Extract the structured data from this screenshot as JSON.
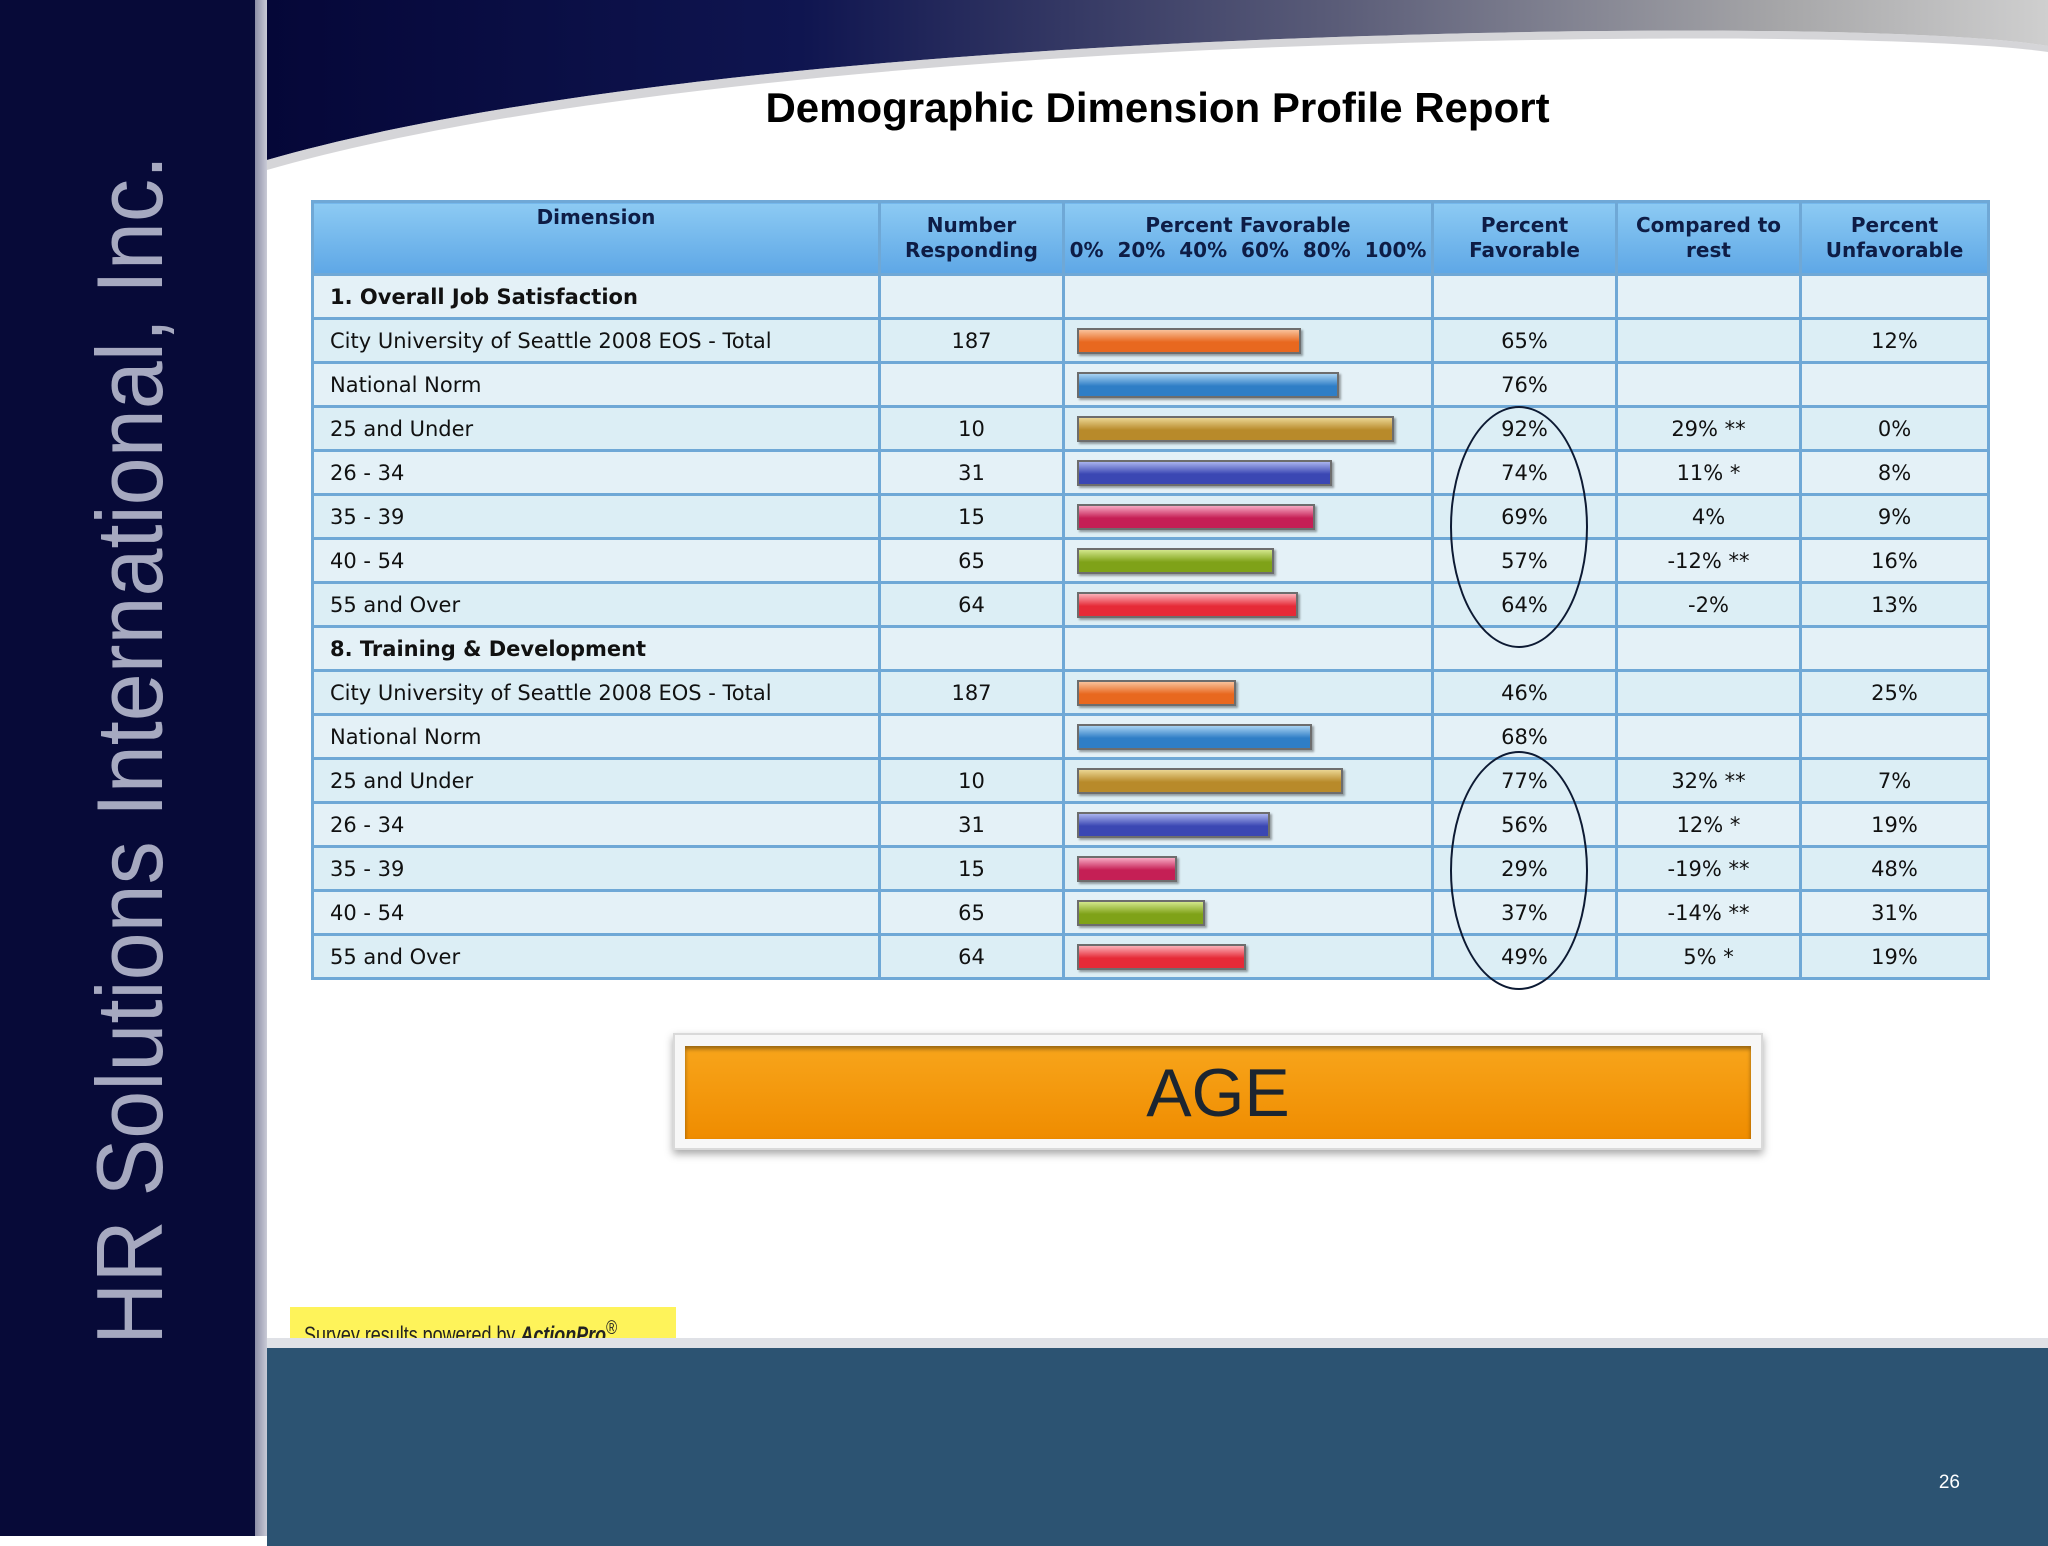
{
  "brand": {
    "text": "HR Solutions International, Inc."
  },
  "title": "Demographic Dimension Profile Report",
  "table": {
    "headers": {
      "dimension": "Dimension",
      "number_responding_1": "Number",
      "number_responding_2": "Responding",
      "percent_favorable_bar_1": "Percent Favorable",
      "percent_favorable_bar_2": "0%  20%  40%  60%  80%  100%",
      "percent_favorable_1": "Percent",
      "percent_favorable_2": "Favorable",
      "compared_1": "Compared to",
      "compared_2": "rest",
      "percent_unfavorable_1": "Percent",
      "percent_unfavorable_2": "Unfavorable"
    },
    "rows": [
      {
        "dimension": "1. Overall Job Satisfaction",
        "section": true
      },
      {
        "dimension": "City University of Seattle 2008 EOS - Total",
        "number": "187",
        "favorable": "65%",
        "compared": "",
        "unfavorable": "12%",
        "bar_value": 65,
        "color": "orange"
      },
      {
        "dimension": "National Norm",
        "number": "",
        "favorable": "76%",
        "compared": "",
        "unfavorable": "",
        "bar_value": 76,
        "color": "blue"
      },
      {
        "dimension": "25 and Under",
        "number": "10",
        "favorable": "92%",
        "compared": "29% **",
        "unfavorable": "0%",
        "bar_value": 92,
        "color": "gold"
      },
      {
        "dimension": "26 - 34",
        "number": "31",
        "favorable": "74%",
        "compared": "11% *",
        "unfavorable": "8%",
        "bar_value": 74,
        "color": "indigo"
      },
      {
        "dimension": "35 - 39",
        "number": "15",
        "favorable": "69%",
        "compared": "4%",
        "unfavorable": "9%",
        "bar_value": 69,
        "color": "magenta"
      },
      {
        "dimension": "40 - 54",
        "number": "65",
        "favorable": "57%",
        "compared": "-12% **",
        "unfavorable": "16%",
        "bar_value": 57,
        "color": "green"
      },
      {
        "dimension": "55 and Over",
        "number": "64",
        "favorable": "64%",
        "compared": "-2%",
        "unfavorable": "13%",
        "bar_value": 64,
        "color": "red"
      },
      {
        "dimension": "8. Training & Development",
        "section": true
      },
      {
        "dimension": "City University of Seattle 2008 EOS - Total",
        "number": "187",
        "favorable": "46%",
        "compared": "",
        "unfavorable": "25%",
        "bar_value": 46,
        "color": "orange"
      },
      {
        "dimension": "National Norm",
        "number": "",
        "favorable": "68%",
        "compared": "",
        "unfavorable": "",
        "bar_value": 68,
        "color": "blue"
      },
      {
        "dimension": "25 and Under",
        "number": "10",
        "favorable": "77%",
        "compared": "32% **",
        "unfavorable": "7%",
        "bar_value": 77,
        "color": "gold"
      },
      {
        "dimension": "26 - 34",
        "number": "31",
        "favorable": "56%",
        "compared": "12% *",
        "unfavorable": "19%",
        "bar_value": 56,
        "color": "indigo"
      },
      {
        "dimension": "35 - 39",
        "number": "15",
        "favorable": "29%",
        "compared": "-19% **",
        "unfavorable": "48%",
        "bar_value": 29,
        "color": "magenta"
      },
      {
        "dimension": "40 - 54",
        "number": "65",
        "favorable": "37%",
        "compared": "-14% **",
        "unfavorable": "31%",
        "bar_value": 37,
        "color": "green"
      },
      {
        "dimension": "55 and Over",
        "number": "64",
        "favorable": "49%",
        "compared": "5% *",
        "unfavorable": "19%",
        "bar_value": 49,
        "color": "red"
      }
    ]
  },
  "colors": {
    "orange": [
      "#f9c19a",
      "#e8681f"
    ],
    "blue": [
      "#a8d2f2",
      "#2f7ec6"
    ],
    "gold": [
      "#ead592",
      "#b88a2a"
    ],
    "indigo": [
      "#a9b3ee",
      "#3b47b3"
    ],
    "magenta": [
      "#f6a9c3",
      "#c51f55"
    ],
    "green": [
      "#d2e68b",
      "#7fa218"
    ],
    "red": [
      "#fbb0b8",
      "#e62a37"
    ]
  },
  "age_banner": {
    "text": "AGE"
  },
  "powered_by": {
    "prefix": "Survey results powered by ",
    "brand": "ActionPro",
    "mark": "®"
  },
  "page_number": "26"
}
